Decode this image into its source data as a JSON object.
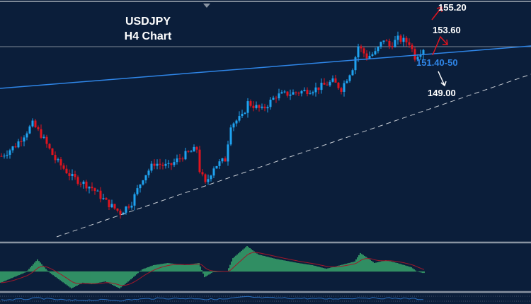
{
  "chart_data": {
    "type": "candlestick",
    "title": "USDJPY",
    "subtitle": "H4 Chart",
    "ylim": [
      138.6,
      155.3
    ],
    "bars": 150,
    "close_waypoints": [
      [
        0,
        144.46
      ],
      [
        5,
        145.2
      ],
      [
        11,
        146.68
      ],
      [
        14,
        145.94
      ],
      [
        19,
        144.22
      ],
      [
        25,
        142.98
      ],
      [
        32,
        142.25
      ],
      [
        37,
        141.26
      ],
      [
        42,
        140.52
      ],
      [
        46,
        141.26
      ],
      [
        50,
        142.98
      ],
      [
        54,
        143.97
      ],
      [
        59,
        143.72
      ],
      [
        64,
        144.46
      ],
      [
        69,
        144.96
      ],
      [
        70,
        143.48
      ],
      [
        72,
        142.49
      ],
      [
        75,
        143.72
      ],
      [
        79,
        144.22
      ],
      [
        81,
        146.68
      ],
      [
        85,
        147.17
      ],
      [
        87,
        148.16
      ],
      [
        92,
        147.66
      ],
      [
        97,
        148.65
      ],
      [
        105,
        148.9
      ],
      [
        111,
        149.14
      ],
      [
        117,
        149.63
      ],
      [
        120,
        149.14
      ],
      [
        124,
        150.62
      ],
      [
        126,
        152.1
      ],
      [
        129,
        151.36
      ],
      [
        132,
        151.61
      ],
      [
        135,
        152.59
      ],
      [
        137,
        152.1
      ],
      [
        140,
        152.59
      ],
      [
        144,
        152.34
      ],
      [
        146,
        151.36
      ],
      [
        149,
        151.95
      ]
    ],
    "macd_waypoints": [
      [
        0,
        -0.53
      ],
      [
        9,
        -0.03
      ],
      [
        13,
        0.57
      ],
      [
        17,
        -0.03
      ],
      [
        25,
        -0.8
      ],
      [
        29,
        -0.53
      ],
      [
        32,
        -0.6
      ],
      [
        37,
        -0.47
      ],
      [
        42,
        -0.8
      ],
      [
        46,
        -0.37
      ],
      [
        50,
        0.1
      ],
      [
        54,
        0.3
      ],
      [
        59,
        0.4
      ],
      [
        65,
        0.3
      ],
      [
        70,
        0.4
      ],
      [
        72,
        -0.27
      ],
      [
        75,
        -0.03
      ],
      [
        80,
        0
      ],
      [
        82,
        0.63
      ],
      [
        87,
        1.2
      ],
      [
        91,
        0.8
      ],
      [
        97,
        0.6
      ],
      [
        105,
        0.4
      ],
      [
        110,
        0.3
      ],
      [
        115,
        0.13
      ],
      [
        120,
        0.3
      ],
      [
        125,
        0.47
      ],
      [
        127,
        0.87
      ],
      [
        130,
        0.6
      ],
      [
        132,
        0.4
      ],
      [
        136,
        0.53
      ],
      [
        140,
        0.4
      ],
      [
        145,
        0.2
      ],
      [
        147,
        0
      ],
      [
        149,
        -0.07
      ]
    ],
    "annotations": {
      "target_high": "155.20",
      "target_mid": "153.60",
      "support": "151.40-50",
      "target_low": "149.00"
    },
    "colors": {
      "background": "#0b1e3a",
      "bull": "#1fa3f0",
      "bear": "#e0141e",
      "support_line": "#2f86e8",
      "histogram": "#3aaa6e",
      "signal": "#a0182a",
      "oscillator": "#2a6fc0"
    }
  }
}
